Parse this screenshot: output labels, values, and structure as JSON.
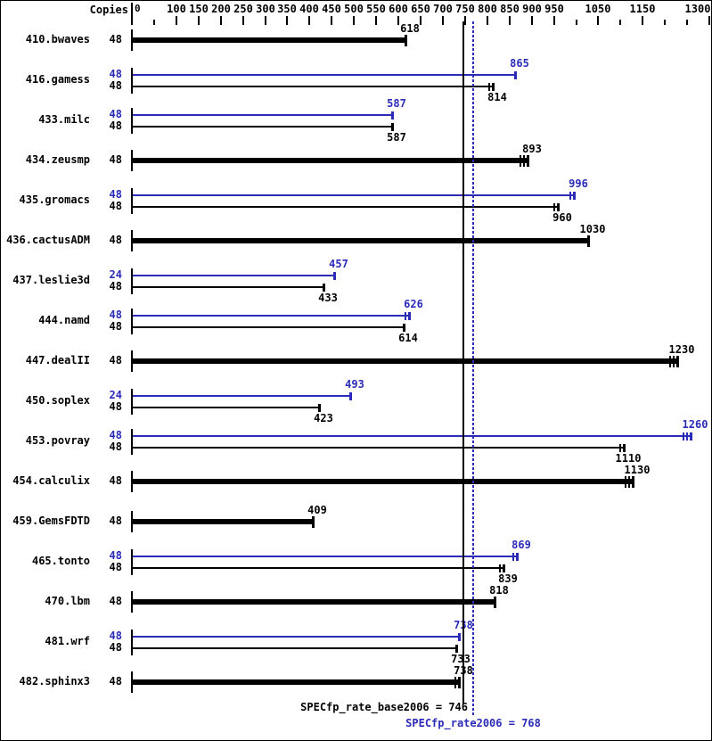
{
  "chart_data": {
    "type": "bar",
    "orientation": "horizontal",
    "copies_header": "Copies",
    "axis": {
      "min": 0,
      "max": 1300,
      "tick_step": 50,
      "labeled_ticks": [
        0,
        100,
        150,
        200,
        250,
        300,
        350,
        400,
        450,
        500,
        550,
        600,
        650,
        700,
        750,
        800,
        850,
        900,
        950,
        1050,
        1150,
        1300
      ],
      "short_ticks": [
        50,
        1000,
        1100,
        1200,
        1250
      ]
    },
    "colors": {
      "base": "#000000",
      "peak": "#2b2bb8",
      "background": "#ffffff"
    },
    "benchmarks": [
      {
        "name": "410.bwaves",
        "bars": [
          {
            "kind": "single",
            "copies": 48,
            "value": 618,
            "marks": 1
          }
        ]
      },
      {
        "name": "416.gamess",
        "bars": [
          {
            "kind": "peak",
            "copies": 48,
            "value": 865,
            "marks": 1
          },
          {
            "kind": "base",
            "copies": 48,
            "value": 814,
            "marks": 2
          }
        ]
      },
      {
        "name": "433.milc",
        "bars": [
          {
            "kind": "peak",
            "copies": 48,
            "value": 587,
            "marks": 1
          },
          {
            "kind": "base",
            "copies": 48,
            "value": 587,
            "marks": 1
          }
        ]
      },
      {
        "name": "434.zeusmp",
        "bars": [
          {
            "kind": "single",
            "copies": 48,
            "value": 893,
            "marks": 3
          }
        ]
      },
      {
        "name": "435.gromacs",
        "bars": [
          {
            "kind": "peak",
            "copies": 48,
            "value": 996,
            "marks": 2
          },
          {
            "kind": "base",
            "copies": 48,
            "value": 960,
            "marks": 2
          }
        ]
      },
      {
        "name": "436.cactusADM",
        "bars": [
          {
            "kind": "single",
            "copies": 48,
            "value": 1030,
            "marks": 1
          }
        ]
      },
      {
        "name": "437.leslie3d",
        "bars": [
          {
            "kind": "peak",
            "copies": 24,
            "value": 457,
            "marks": 1
          },
          {
            "kind": "base",
            "copies": 48,
            "value": 433,
            "marks": 1
          }
        ]
      },
      {
        "name": "444.namd",
        "bars": [
          {
            "kind": "peak",
            "copies": 48,
            "value": 626,
            "marks": 2
          },
          {
            "kind": "base",
            "copies": 48,
            "value": 614,
            "marks": 1
          }
        ]
      },
      {
        "name": "447.dealII",
        "bars": [
          {
            "kind": "single",
            "copies": 48,
            "value": 1230,
            "marks": 3
          }
        ]
      },
      {
        "name": "450.soplex",
        "bars": [
          {
            "kind": "peak",
            "copies": 24,
            "value": 493,
            "marks": 1
          },
          {
            "kind": "base",
            "copies": 48,
            "value": 423,
            "marks": 1
          }
        ]
      },
      {
        "name": "453.povray",
        "bars": [
          {
            "kind": "peak",
            "copies": 48,
            "value": 1260,
            "marks": 3
          },
          {
            "kind": "base",
            "copies": 48,
            "value": 1110,
            "marks": 2
          }
        ]
      },
      {
        "name": "454.calculix",
        "bars": [
          {
            "kind": "single",
            "copies": 48,
            "value": 1130,
            "marks": 3
          }
        ]
      },
      {
        "name": "459.GemsFDTD",
        "bars": [
          {
            "kind": "single",
            "copies": 48,
            "value": 409,
            "marks": 1
          }
        ]
      },
      {
        "name": "465.tonto",
        "bars": [
          {
            "kind": "peak",
            "copies": 48,
            "value": 869,
            "marks": 2
          },
          {
            "kind": "base",
            "copies": 48,
            "value": 839,
            "marks": 2
          }
        ]
      },
      {
        "name": "470.lbm",
        "bars": [
          {
            "kind": "single",
            "copies": 48,
            "value": 818,
            "marks": 1
          }
        ]
      },
      {
        "name": "481.wrf",
        "bars": [
          {
            "kind": "peak",
            "copies": 48,
            "value": 738,
            "marks": 1
          },
          {
            "kind": "base",
            "copies": 48,
            "value": 733,
            "marks": 1
          }
        ]
      },
      {
        "name": "482.sphinx3",
        "bars": [
          {
            "kind": "single",
            "copies": 48,
            "value": 738,
            "marks": 2
          }
        ]
      }
    ],
    "summary": {
      "base": {
        "label": "SPECfp_rate_base2006 = 746",
        "value": 746,
        "line_style": "solid"
      },
      "peak": {
        "label": "SPECfp_rate2006 = 768",
        "value": 768,
        "line_style": "dotted"
      }
    }
  }
}
